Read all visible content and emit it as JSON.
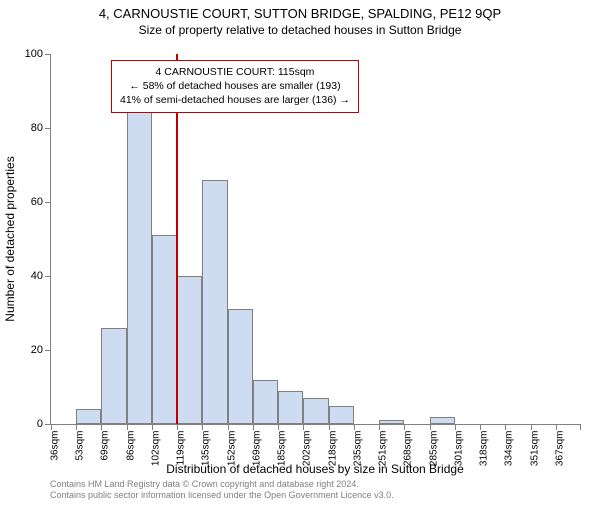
{
  "header": {
    "title": "4, CARNOUSTIE COURT, SUTTON BRIDGE, SPALDING, PE12 9QP",
    "subtitle": "Size of property relative to detached houses in Sutton Bridge"
  },
  "chart": {
    "type": "histogram",
    "ylabel": "Number of detached properties",
    "xlabel": "Distribution of detached houses by size in Sutton Bridge",
    "ylim": [
      0,
      100
    ],
    "ytick_step": 20,
    "yticks": [
      0,
      20,
      40,
      60,
      80,
      100
    ],
    "categories": [
      "36sqm",
      "53sqm",
      "69sqm",
      "86sqm",
      "102sqm",
      "119sqm",
      "135sqm",
      "152sqm",
      "169sqm",
      "185sqm",
      "202sqm",
      "218sqm",
      "235sqm",
      "251sqm",
      "268sqm",
      "285sqm",
      "301sqm",
      "318sqm",
      "334sqm",
      "351sqm",
      "367sqm"
    ],
    "values": [
      0,
      4,
      26,
      85,
      51,
      40,
      66,
      31,
      12,
      9,
      7,
      5,
      0,
      1,
      0,
      2,
      0,
      0,
      0,
      0,
      0
    ],
    "bar_color": "#cedcf2",
    "bar_border_color": "#808080",
    "bar_width_ratio": 1.0,
    "axis_color": "#808080",
    "tick_fontsize": 11,
    "label_fontsize": 12,
    "background_color": "#ffffff",
    "reference_line": {
      "category_index": 5,
      "color": "#c00000"
    },
    "info_box": {
      "border_color": "#c00000",
      "lines": [
        "4 CARNOUSTIE COURT: 115sqm",
        "← 58% of detached houses are smaller (193)",
        "41% of semi-detached houses are larger (136) →"
      ],
      "fontsize": 10.5
    }
  },
  "footer": {
    "line1": "Contains HM Land Registry data © Crown copyright and database right 2024.",
    "line2": "Contains public sector information licensed under the Open Government Licence v3.0."
  }
}
